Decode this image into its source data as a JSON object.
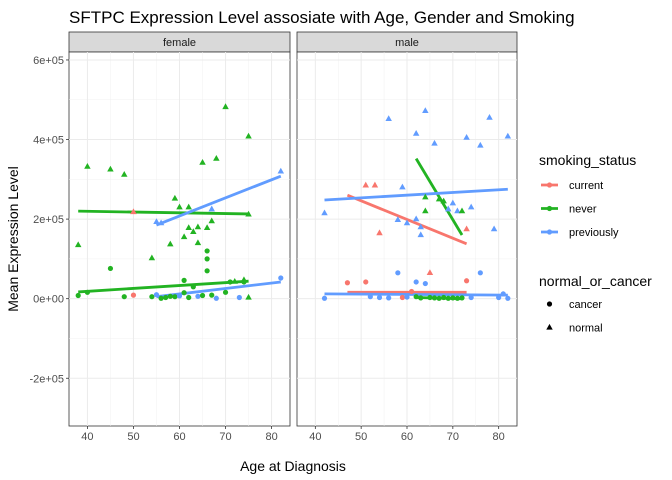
{
  "chart_data": {
    "type": "scatter",
    "title": "SFTPC Expression Level assosiate with Age, Gender and Smoking",
    "xlabel": "Age at Diagnosis",
    "ylabel": "Mean Expression Level",
    "xlim": [
      36,
      84
    ],
    "ylim": [
      -320000,
      620000
    ],
    "x_ticks": [
      40,
      50,
      60,
      70,
      80
    ],
    "x_tick_labels": [
      "40",
      "50",
      "60",
      "70",
      "80"
    ],
    "y_ticks": [
      -200000,
      0,
      200000,
      400000,
      600000
    ],
    "y_tick_labels": [
      "-2e+05",
      "0e+00",
      "2e+05",
      "4e+05",
      "6e+05"
    ],
    "grid": true,
    "legend_position": "right",
    "facets": [
      "female",
      "male"
    ],
    "colors": {
      "current": "#F8766D",
      "never": "#22B322",
      "previously": "#619CFF"
    },
    "legends": [
      {
        "title": "smoking_status",
        "type": "color",
        "items": [
          {
            "label": "current",
            "key": "current"
          },
          {
            "label": "never",
            "key": "never"
          },
          {
            "label": "previously",
            "key": "previously"
          }
        ]
      },
      {
        "title": "normal_or_cancer",
        "type": "shape",
        "items": [
          {
            "label": "cancer",
            "key": "cancer"
          },
          {
            "label": "normal",
            "key": "normal"
          }
        ]
      }
    ],
    "points": {
      "female": [
        {
          "x": 38,
          "y": 135000,
          "s": "never",
          "t": "normal"
        },
        {
          "x": 40,
          "y": 332000,
          "s": "never",
          "t": "normal"
        },
        {
          "x": 45,
          "y": 325000,
          "s": "never",
          "t": "normal"
        },
        {
          "x": 48,
          "y": 312000,
          "s": "never",
          "t": "normal"
        },
        {
          "x": 50,
          "y": 218000,
          "s": "current",
          "t": "normal"
        },
        {
          "x": 54,
          "y": 102000,
          "s": "never",
          "t": "normal"
        },
        {
          "x": 55,
          "y": 193000,
          "s": "previously",
          "t": "normal"
        },
        {
          "x": 56,
          "y": 190000,
          "s": "previously",
          "t": "normal"
        },
        {
          "x": 58,
          "y": 137000,
          "s": "never",
          "t": "normal"
        },
        {
          "x": 59,
          "y": 252000,
          "s": "never",
          "t": "normal"
        },
        {
          "x": 60,
          "y": 230000,
          "s": "never",
          "t": "normal"
        },
        {
          "x": 61,
          "y": 155000,
          "s": "never",
          "t": "normal"
        },
        {
          "x": 62,
          "y": 178000,
          "s": "never",
          "t": "normal"
        },
        {
          "x": 62,
          "y": 230000,
          "s": "never",
          "t": "normal"
        },
        {
          "x": 63,
          "y": 168000,
          "s": "never",
          "t": "normal"
        },
        {
          "x": 64,
          "y": 180000,
          "s": "never",
          "t": "normal"
        },
        {
          "x": 64,
          "y": 140000,
          "s": "never",
          "t": "normal"
        },
        {
          "x": 65,
          "y": 342000,
          "s": "never",
          "t": "normal"
        },
        {
          "x": 66,
          "y": 178000,
          "s": "never",
          "t": "normal"
        },
        {
          "x": 67,
          "y": 195000,
          "s": "never",
          "t": "normal"
        },
        {
          "x": 67,
          "y": 225000,
          "s": "previously",
          "t": "normal"
        },
        {
          "x": 68,
          "y": 352000,
          "s": "never",
          "t": "normal"
        },
        {
          "x": 70,
          "y": 482000,
          "s": "never",
          "t": "normal"
        },
        {
          "x": 72,
          "y": 43000,
          "s": "never",
          "t": "normal"
        },
        {
          "x": 74,
          "y": 47000,
          "s": "never",
          "t": "normal"
        },
        {
          "x": 75,
          "y": 408000,
          "s": "never",
          "t": "normal"
        },
        {
          "x": 75,
          "y": 212000,
          "s": "never",
          "t": "normal"
        },
        {
          "x": 75,
          "y": 3000,
          "s": "never",
          "t": "normal"
        },
        {
          "x": 82,
          "y": 320000,
          "s": "previously",
          "t": "normal"
        },
        {
          "x": 38,
          "y": 8000,
          "s": "never",
          "t": "cancer"
        },
        {
          "x": 40,
          "y": 16000,
          "s": "never",
          "t": "cancer"
        },
        {
          "x": 45,
          "y": 76000,
          "s": "never",
          "t": "cancer"
        },
        {
          "x": 48,
          "y": 5000,
          "s": "never",
          "t": "cancer"
        },
        {
          "x": 50,
          "y": 9000,
          "s": "current",
          "t": "cancer"
        },
        {
          "x": 54,
          "y": 5000,
          "s": "never",
          "t": "cancer"
        },
        {
          "x": 55,
          "y": 10000,
          "s": "previously",
          "t": "cancer"
        },
        {
          "x": 56,
          "y": 1000,
          "s": "never",
          "t": "cancer"
        },
        {
          "x": 57,
          "y": 3000,
          "s": "never",
          "t": "cancer"
        },
        {
          "x": 58,
          "y": 6000,
          "s": "never",
          "t": "cancer"
        },
        {
          "x": 59,
          "y": 5000,
          "s": "never",
          "t": "cancer"
        },
        {
          "x": 60,
          "y": 7000,
          "s": "previously",
          "t": "cancer"
        },
        {
          "x": 61,
          "y": 46000,
          "s": "never",
          "t": "cancer"
        },
        {
          "x": 61,
          "y": 15000,
          "s": "never",
          "t": "cancer"
        },
        {
          "x": 62,
          "y": 3000,
          "s": "never",
          "t": "cancer"
        },
        {
          "x": 63,
          "y": 30000,
          "s": "never",
          "t": "cancer"
        },
        {
          "x": 64,
          "y": 6000,
          "s": "previously",
          "t": "cancer"
        },
        {
          "x": 65,
          "y": 8000,
          "s": "never",
          "t": "cancer"
        },
        {
          "x": 66,
          "y": 120000,
          "s": "never",
          "t": "cancer"
        },
        {
          "x": 66,
          "y": 100000,
          "s": "never",
          "t": "cancer"
        },
        {
          "x": 66,
          "y": 70000,
          "s": "never",
          "t": "cancer"
        },
        {
          "x": 67,
          "y": 9000,
          "s": "never",
          "t": "cancer"
        },
        {
          "x": 68,
          "y": 1000,
          "s": "previously",
          "t": "cancer"
        },
        {
          "x": 70,
          "y": 16000,
          "s": "never",
          "t": "cancer"
        },
        {
          "x": 71,
          "y": 42000,
          "s": "never",
          "t": "cancer"
        },
        {
          "x": 73,
          "y": 3000,
          "s": "previously",
          "t": "cancer"
        },
        {
          "x": 74,
          "y": 42000,
          "s": "never",
          "t": "cancer"
        },
        {
          "x": 82,
          "y": 52000,
          "s": "previously",
          "t": "cancer"
        }
      ],
      "male": [
        {
          "x": 42,
          "y": 215000,
          "s": "previously",
          "t": "normal"
        },
        {
          "x": 51,
          "y": 285000,
          "s": "current",
          "t": "normal"
        },
        {
          "x": 53,
          "y": 285000,
          "s": "current",
          "t": "normal"
        },
        {
          "x": 54,
          "y": 165000,
          "s": "current",
          "t": "normal"
        },
        {
          "x": 56,
          "y": 452000,
          "s": "previously",
          "t": "normal"
        },
        {
          "x": 58,
          "y": 198000,
          "s": "previously",
          "t": "normal"
        },
        {
          "x": 59,
          "y": 280000,
          "s": "previously",
          "t": "normal"
        },
        {
          "x": 60,
          "y": 190000,
          "s": "previously",
          "t": "normal"
        },
        {
          "x": 62,
          "y": 415000,
          "s": "previously",
          "t": "normal"
        },
        {
          "x": 62,
          "y": 200000,
          "s": "previously",
          "t": "normal"
        },
        {
          "x": 63,
          "y": 180000,
          "s": "previously",
          "t": "normal"
        },
        {
          "x": 63,
          "y": 160000,
          "s": "previously",
          "t": "normal"
        },
        {
          "x": 64,
          "y": 472000,
          "s": "previously",
          "t": "normal"
        },
        {
          "x": 64,
          "y": 255000,
          "s": "never",
          "t": "normal"
        },
        {
          "x": 64,
          "y": 220000,
          "s": "never",
          "t": "normal"
        },
        {
          "x": 65,
          "y": 65000,
          "s": "current",
          "t": "normal"
        },
        {
          "x": 66,
          "y": 390000,
          "s": "previously",
          "t": "normal"
        },
        {
          "x": 67,
          "y": 250000,
          "s": "never",
          "t": "normal"
        },
        {
          "x": 68,
          "y": 245000,
          "s": "never",
          "t": "normal"
        },
        {
          "x": 69,
          "y": 225000,
          "s": "previously",
          "t": "normal"
        },
        {
          "x": 70,
          "y": 240000,
          "s": "previously",
          "t": "normal"
        },
        {
          "x": 71,
          "y": 220000,
          "s": "previously",
          "t": "normal"
        },
        {
          "x": 72,
          "y": 220000,
          "s": "never",
          "t": "normal"
        },
        {
          "x": 73,
          "y": 175000,
          "s": "current",
          "t": "normal"
        },
        {
          "x": 73,
          "y": 405000,
          "s": "previously",
          "t": "normal"
        },
        {
          "x": 74,
          "y": 230000,
          "s": "previously",
          "t": "normal"
        },
        {
          "x": 76,
          "y": 385000,
          "s": "previously",
          "t": "normal"
        },
        {
          "x": 78,
          "y": 455000,
          "s": "previously",
          "t": "normal"
        },
        {
          "x": 79,
          "y": 175000,
          "s": "previously",
          "t": "normal"
        },
        {
          "x": 82,
          "y": 408000,
          "s": "previously",
          "t": "normal"
        },
        {
          "x": 42,
          "y": 1000,
          "s": "previously",
          "t": "cancer"
        },
        {
          "x": 47,
          "y": 40000,
          "s": "current",
          "t": "cancer"
        },
        {
          "x": 51,
          "y": 42000,
          "s": "current",
          "t": "cancer"
        },
        {
          "x": 52,
          "y": 5000,
          "s": "previously",
          "t": "cancer"
        },
        {
          "x": 54,
          "y": 3000,
          "s": "previously",
          "t": "cancer"
        },
        {
          "x": 56,
          "y": 2000,
          "s": "previously",
          "t": "cancer"
        },
        {
          "x": 58,
          "y": 65000,
          "s": "previously",
          "t": "cancer"
        },
        {
          "x": 59,
          "y": 3000,
          "s": "current",
          "t": "cancer"
        },
        {
          "x": 60,
          "y": 4000,
          "s": "previously",
          "t": "cancer"
        },
        {
          "x": 61,
          "y": 18000,
          "s": "current",
          "t": "cancer"
        },
        {
          "x": 62,
          "y": 42000,
          "s": "previously",
          "t": "cancer"
        },
        {
          "x": 62,
          "y": 5000,
          "s": "never",
          "t": "cancer"
        },
        {
          "x": 63,
          "y": 2000,
          "s": "never",
          "t": "cancer"
        },
        {
          "x": 64,
          "y": 38000,
          "s": "previously",
          "t": "cancer"
        },
        {
          "x": 65,
          "y": 3000,
          "s": "never",
          "t": "cancer"
        },
        {
          "x": 66,
          "y": 2000,
          "s": "never",
          "t": "cancer"
        },
        {
          "x": 67,
          "y": 1000,
          "s": "never",
          "t": "cancer"
        },
        {
          "x": 68,
          "y": 3000,
          "s": "never",
          "t": "cancer"
        },
        {
          "x": 69,
          "y": 1000,
          "s": "never",
          "t": "cancer"
        },
        {
          "x": 70,
          "y": 2000,
          "s": "never",
          "t": "cancer"
        },
        {
          "x": 71,
          "y": 1000,
          "s": "never",
          "t": "cancer"
        },
        {
          "x": 72,
          "y": 2000,
          "s": "never",
          "t": "cancer"
        },
        {
          "x": 73,
          "y": 45000,
          "s": "current",
          "t": "cancer"
        },
        {
          "x": 74,
          "y": 3000,
          "s": "previously",
          "t": "cancer"
        },
        {
          "x": 76,
          "y": 65000,
          "s": "previously",
          "t": "cancer"
        },
        {
          "x": 80,
          "y": 3000,
          "s": "previously",
          "t": "cancer"
        },
        {
          "x": 81,
          "y": 12000,
          "s": "previously",
          "t": "cancer"
        },
        {
          "x": 82,
          "y": 1000,
          "s": "previously",
          "t": "cancer"
        }
      ]
    },
    "trend_lines": {
      "female": [
        {
          "s": "never",
          "x": [
            38,
            75
          ],
          "y": [
            220000,
            213000
          ]
        },
        {
          "s": "previously",
          "x": [
            55,
            82
          ],
          "y": [
            185000,
            308000
          ]
        },
        {
          "s": "never",
          "x": [
            38,
            75
          ],
          "y": [
            17000,
            44000
          ]
        },
        {
          "s": "previously",
          "x": [
            55,
            82
          ],
          "y": [
            5000,
            42000
          ]
        }
      ],
      "male": [
        {
          "s": "current",
          "x": [
            47,
            73
          ],
          "y": [
            260000,
            138000
          ]
        },
        {
          "s": "never",
          "x": [
            62,
            72
          ],
          "y": [
            352000,
            160000
          ]
        },
        {
          "s": "previously",
          "x": [
            42,
            82
          ],
          "y": [
            248000,
            275000
          ]
        },
        {
          "s": "current",
          "x": [
            47,
            73
          ],
          "y": [
            16000,
            16000
          ]
        },
        {
          "s": "never",
          "x": [
            62,
            72
          ],
          "y": [
            3000,
            0
          ]
        },
        {
          "s": "previously",
          "x": [
            42,
            82
          ],
          "y": [
            12000,
            9000
          ]
        }
      ]
    }
  }
}
